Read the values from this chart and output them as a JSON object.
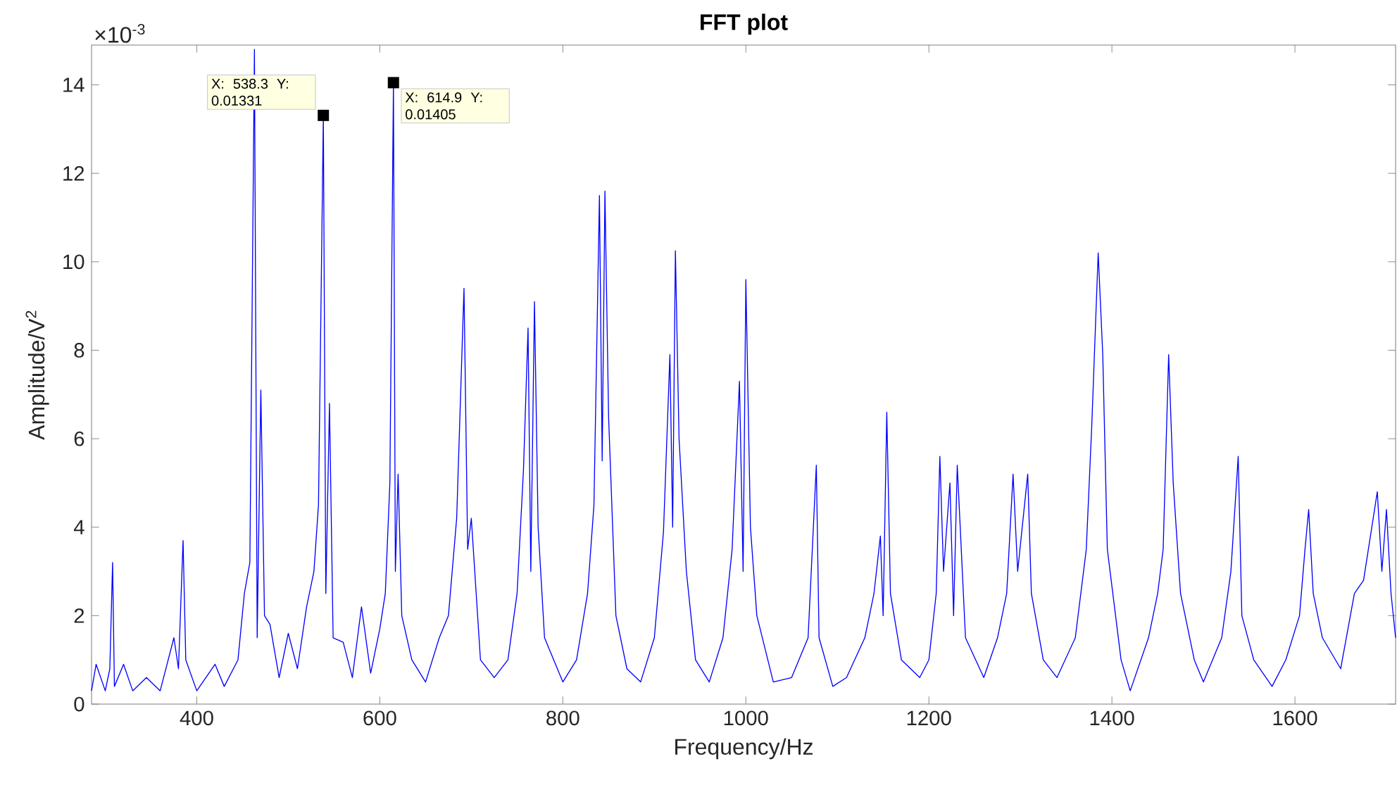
{
  "chart_data": {
    "type": "line",
    "title": "FFT plot",
    "xlabel": "Frequency/Hz",
    "ylabel": "Amplitude/V$^{2}$",
    "xlim": [
      285,
      1710
    ],
    "ylim": [
      0,
      14.9
    ],
    "xticks": [
      400,
      600,
      800,
      1000,
      1200,
      1400,
      1600
    ],
    "yticks": [
      0,
      2,
      4,
      6,
      8,
      10,
      12,
      14
    ],
    "annotations": [
      "×10$^{-3}$",
      {
        "text": "X: 538.3 Y: 0.01331",
        "x": 538.3,
        "y": 13.31
      },
      {
        "text": "X: 614.9 Y: 0.01405",
        "x": 614.9,
        "y": 14.05
      }
    ],
    "x": [
      285,
      290,
      300,
      305,
      308,
      310,
      320,
      330,
      345,
      360,
      375,
      380,
      385,
      388,
      400,
      420,
      430,
      445,
      452,
      458,
      463,
      466,
      470,
      474,
      480,
      490,
      500,
      510,
      520,
      528,
      533,
      538.3,
      541,
      545,
      549,
      560,
      570,
      580,
      590,
      600,
      606,
      611,
      614.9,
      617,
      620,
      624,
      635,
      650,
      665,
      675,
      684,
      692,
      696,
      700,
      710,
      725,
      740,
      750,
      757,
      762,
      765,
      769,
      773,
      780,
      800,
      815,
      827,
      834,
      840,
      843,
      846,
      850,
      858,
      870,
      885,
      900,
      910,
      917,
      920,
      923,
      927,
      935,
      945,
      960,
      975,
      985,
      993,
      997,
      1000,
      1005,
      1012,
      1030,
      1050,
      1068,
      1077,
      1080,
      1095,
      1110,
      1130,
      1140,
      1147,
      1150,
      1154,
      1158,
      1170,
      1190,
      1200,
      1208,
      1212,
      1216,
      1223,
      1227,
      1231,
      1240,
      1260,
      1275,
      1285,
      1292,
      1297,
      1308,
      1312,
      1325,
      1340,
      1360,
      1372,
      1378,
      1385,
      1390,
      1395,
      1410,
      1420,
      1440,
      1450,
      1456,
      1462,
      1467,
      1475,
      1490,
      1500,
      1520,
      1530,
      1538,
      1542,
      1555,
      1575,
      1590,
      1605,
      1611,
      1615,
      1620,
      1630,
      1650,
      1665,
      1675,
      1690,
      1695,
      1700,
      1705,
      1710
    ],
    "series": [
      {
        "color": "#0000ff",
        "values": [
          0.3,
          0.9,
          0.3,
          0.8,
          3.2,
          0.4,
          0.9,
          0.3,
          0.6,
          0.3,
          1.5,
          0.8,
          3.7,
          1.0,
          0.3,
          0.9,
          0.4,
          1.0,
          2.5,
          3.2,
          14.8,
          1.5,
          7.1,
          2.0,
          1.8,
          0.6,
          1.6,
          0.8,
          2.2,
          3.0,
          4.5,
          13.31,
          2.5,
          6.8,
          1.5,
          1.4,
          0.6,
          2.2,
          0.7,
          1.7,
          2.5,
          5.0,
          14.05,
          3.0,
          5.2,
          2.0,
          1.0,
          0.5,
          1.5,
          2.0,
          4.2,
          9.4,
          3.5,
          4.2,
          1.0,
          0.6,
          1.0,
          2.5,
          5.3,
          8.5,
          3.0,
          9.1,
          4.0,
          1.5,
          0.5,
          1.0,
          2.5,
          4.5,
          11.5,
          5.5,
          11.6,
          6.5,
          2.0,
          0.8,
          0.5,
          1.5,
          3.9,
          7.9,
          4.0,
          10.25,
          6.0,
          3.0,
          1.0,
          0.5,
          1.5,
          3.5,
          7.3,
          3.0,
          9.6,
          4.0,
          2.0,
          0.5,
          0.6,
          1.5,
          5.4,
          1.5,
          0.4,
          0.6,
          1.5,
          2.5,
          3.8,
          2.0,
          6.6,
          2.5,
          1.0,
          0.6,
          1.0,
          2.5,
          5.6,
          3.0,
          5.0,
          2.0,
          5.4,
          1.5,
          0.6,
          1.5,
          2.5,
          5.2,
          3.0,
          5.2,
          2.5,
          1.0,
          0.6,
          1.5,
          3.5,
          6.3,
          10.2,
          7.9,
          3.5,
          1.0,
          0.3,
          1.5,
          2.5,
          3.5,
          7.9,
          5.0,
          2.5,
          1.0,
          0.5,
          1.5,
          3.0,
          5.6,
          2.0,
          1.0,
          0.4,
          1.0,
          2.0,
          3.5,
          4.4,
          2.5,
          1.5,
          0.8,
          2.5,
          2.8,
          4.8,
          3.0,
          4.4,
          2.5,
          1.5
        ]
      }
    ]
  }
}
